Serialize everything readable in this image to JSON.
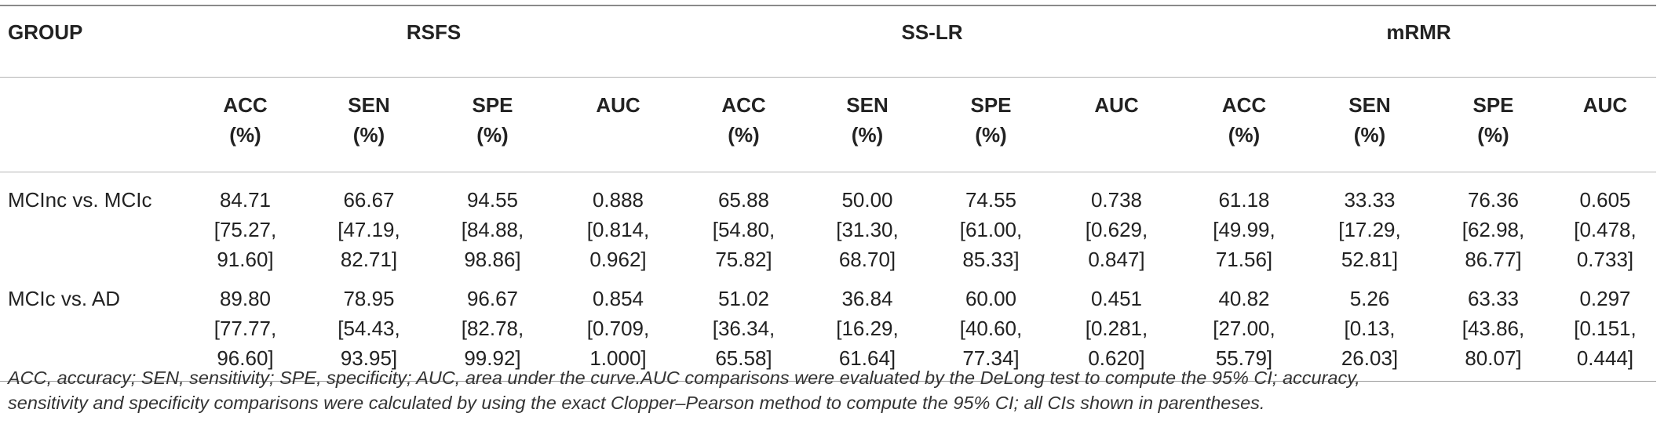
{
  "table": {
    "group_header": "GROUP",
    "method_groups": [
      "RSFS",
      "SS-LR",
      "mRMR"
    ],
    "metrics": [
      [
        "ACC",
        "(%)"
      ],
      [
        "SEN",
        "(%)"
      ],
      [
        "SPE",
        "(%)"
      ],
      [
        "AUC",
        ""
      ],
      [
        "ACC",
        "(%)"
      ],
      [
        "SEN",
        "(%)"
      ],
      [
        "SPE",
        "(%)"
      ],
      [
        "AUC",
        ""
      ],
      [
        "ACC",
        "(%)"
      ],
      [
        "SEN",
        "(%)"
      ],
      [
        "SPE",
        "(%)"
      ],
      [
        "AUC",
        ""
      ]
    ],
    "rows": [
      {
        "label": "MCInc vs. MCIc",
        "cells": [
          [
            "84.71",
            "[75.27,",
            "91.60]"
          ],
          [
            "66.67",
            "[47.19,",
            "82.71]"
          ],
          [
            "94.55",
            "[84.88,",
            "98.86]"
          ],
          [
            "0.888",
            "[0.814,",
            "0.962]"
          ],
          [
            "65.88",
            "[54.80,",
            "75.82]"
          ],
          [
            "50.00",
            "[31.30,",
            "68.70]"
          ],
          [
            "74.55",
            "[61.00,",
            "85.33]"
          ],
          [
            "0.738",
            "[0.629,",
            "0.847]"
          ],
          [
            "61.18",
            "[49.99,",
            "71.56]"
          ],
          [
            "33.33",
            "[17.29,",
            "52.81]"
          ],
          [
            "76.36",
            "[62.98,",
            "86.77]"
          ],
          [
            "0.605",
            "[0.478,",
            "0.733]"
          ]
        ]
      },
      {
        "label": "MCIc vs. AD",
        "cells": [
          [
            "89.80",
            "[77.77,",
            "96.60]"
          ],
          [
            "78.95",
            "[54.43,",
            "93.95]"
          ],
          [
            "96.67",
            "[82.78,",
            "99.92]"
          ],
          [
            "0.854",
            "[0.709,",
            "1.000]"
          ],
          [
            "51.02",
            "[36.34,",
            "65.58]"
          ],
          [
            "36.84",
            "[16.29,",
            "61.64]"
          ],
          [
            "60.00",
            "[40.60,",
            "77.34]"
          ],
          [
            "0.451",
            "[0.281,",
            "0.620]"
          ],
          [
            "40.82",
            "[27.00,",
            "55.79]"
          ],
          [
            "5.26",
            "[0.13,",
            "26.03]"
          ],
          [
            "63.33",
            "[43.86,",
            "80.07]"
          ],
          [
            "0.297",
            "[0.151,",
            "0.444]"
          ]
        ]
      }
    ]
  },
  "footnote": {
    "line1": "ACC, accuracy; SEN, sensitivity; SPE, specificity; AUC, area under the curve.AUC comparisons were evaluated by the DeLong test to compute the 95% CI; accuracy,",
    "line2": "sensitivity and specificity comparisons were calculated by using the exact Clopper–Pearson method to compute the 95% CI; all CIs shown in parentheses."
  }
}
